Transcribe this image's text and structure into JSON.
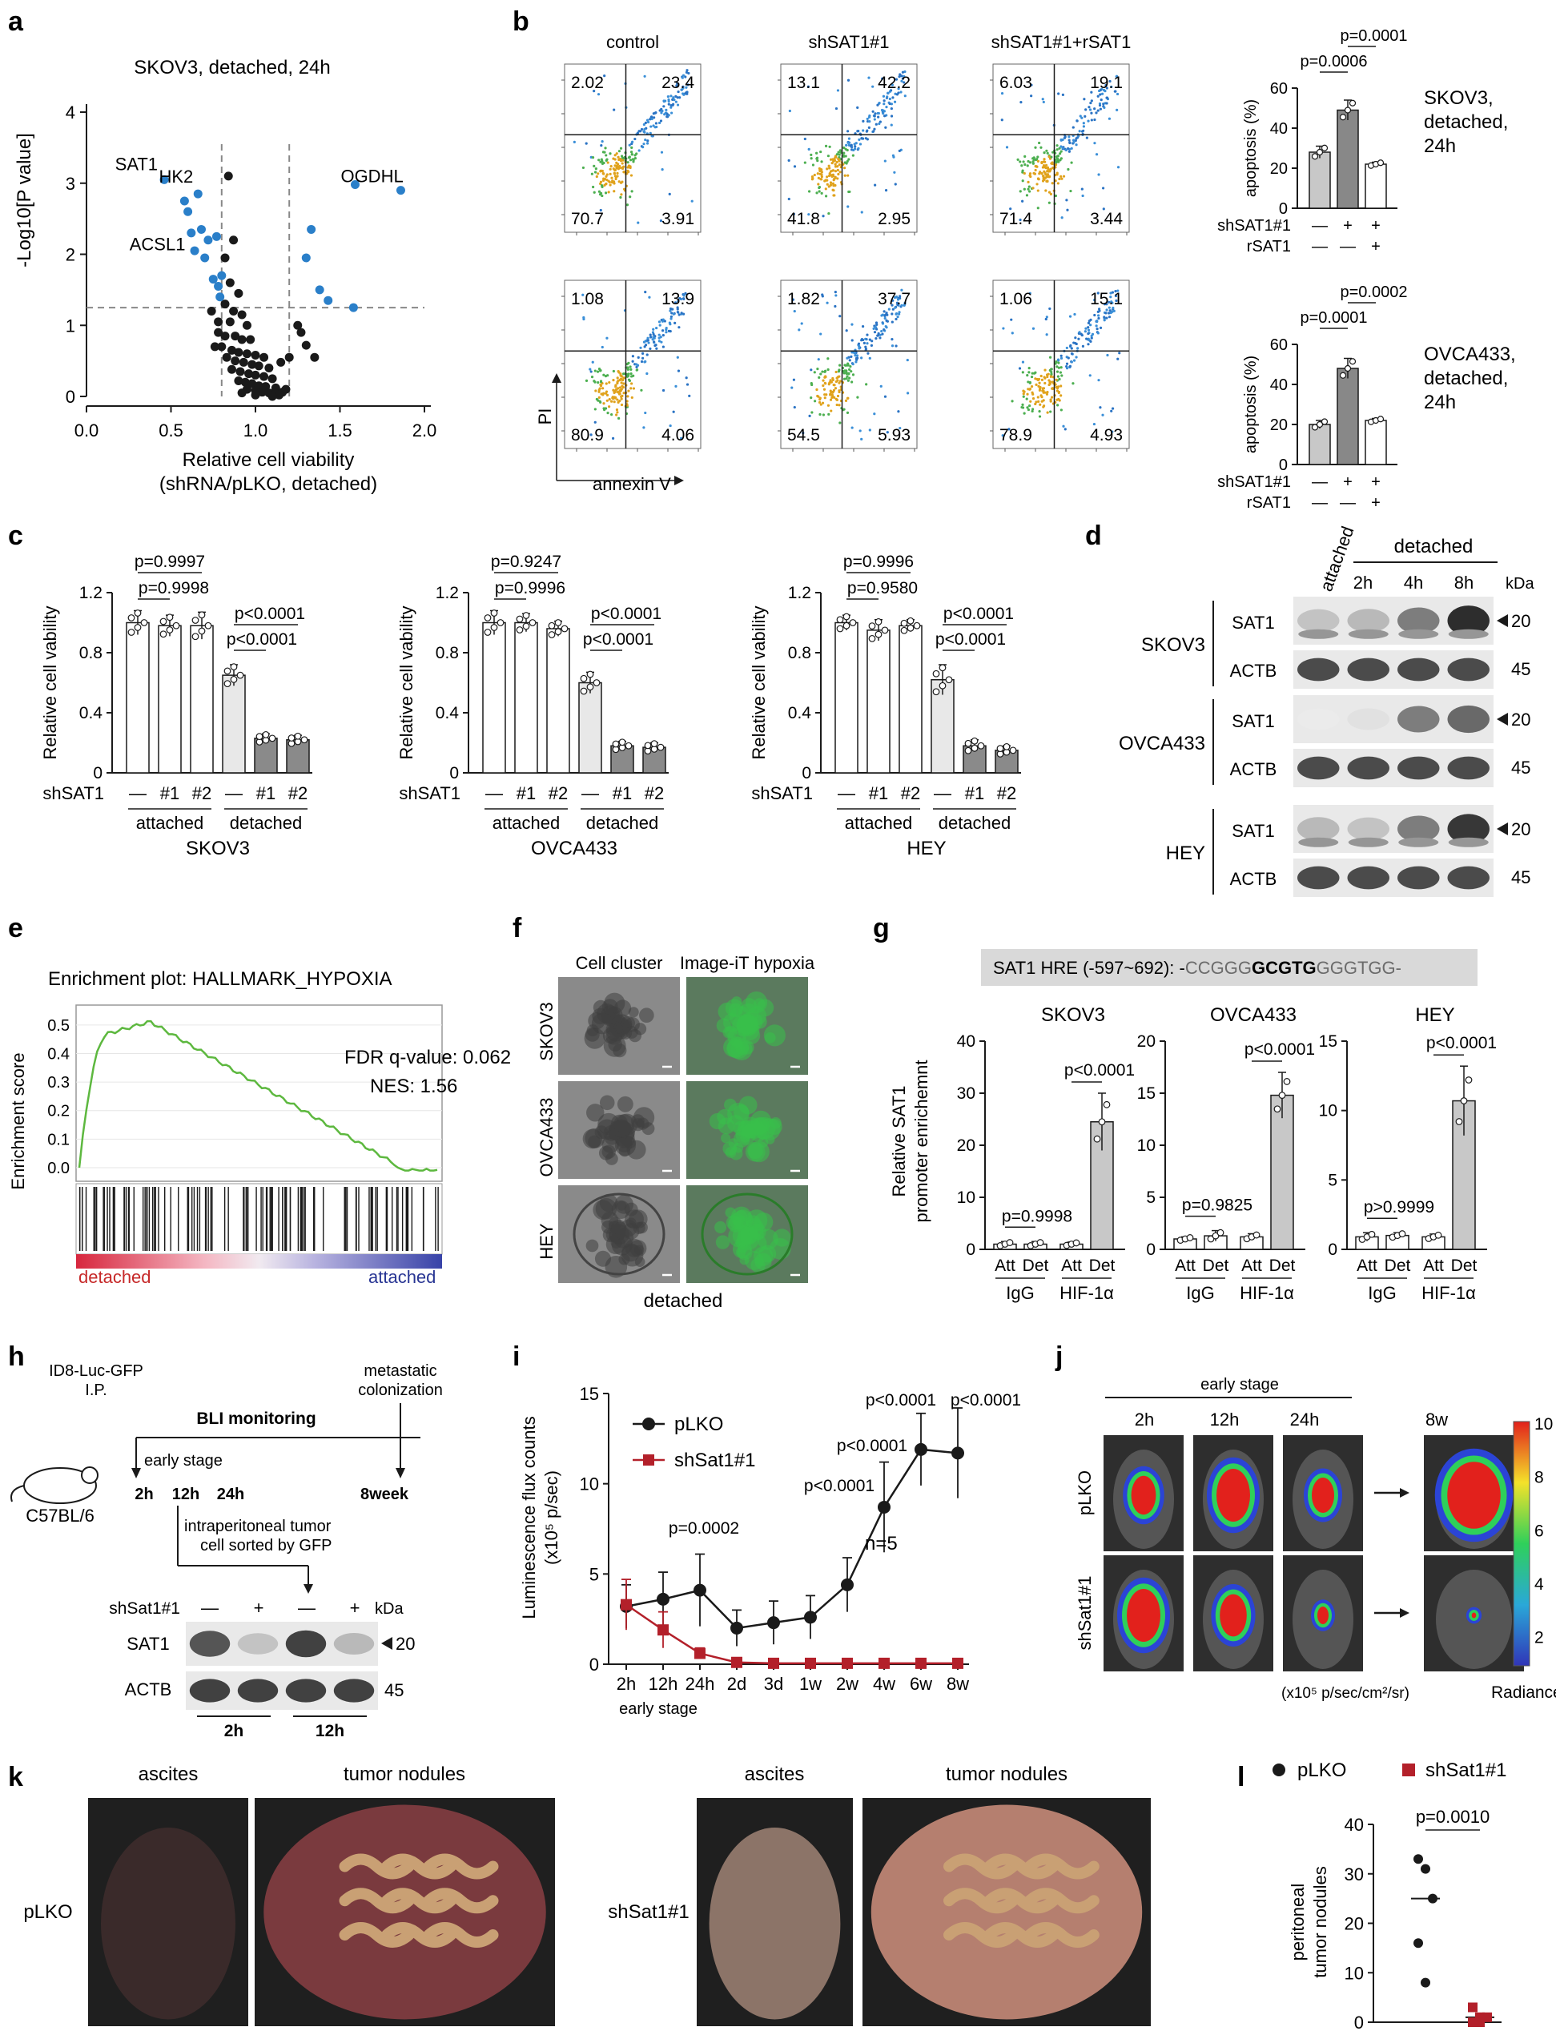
{
  "colors": {
    "black": "#1a1a1a",
    "blue_point": "#2a7fc9",
    "bar_light": "#e6e6e6",
    "bar_dark": "#888888",
    "bar_mid": "#c8c8c8",
    "gsea_line": "#5db83f",
    "shsat1_red": "#b3202a",
    "gfp_green": "#38c04a"
  },
  "panel_a": {
    "letter": "a",
    "title": "SKOV3, detached, 24h",
    "ylabel": "-Log10[P value]",
    "xlabel_line1": "Relative cell viability",
    "xlabel_line2": "(shRNA/pLKO, detached)",
    "point_labels": [
      "SAT1",
      "HK2",
      "ACSL1",
      "OGDHL"
    ],
    "chart_data": {
      "type": "scatter",
      "xlim": [
        0,
        2
      ],
      "ylim": [
        0,
        4
      ],
      "xticks": [
        "0.0",
        "0.5",
        "1.0",
        "1.5",
        "2.0"
      ],
      "yticks": [
        "0",
        "1",
        "2",
        "3",
        "4"
      ],
      "thresholds": {
        "x": [
          0.8,
          1.2
        ],
        "y": 1.25
      },
      "labeled_points": [
        {
          "label": "SAT1",
          "x": 0.46,
          "y": 3.05
        },
        {
          "label": "HK2",
          "x": 0.66,
          "y": 2.85
        },
        {
          "label": "ACSL1",
          "x": 0.68,
          "y": 2.35
        },
        {
          "label": "OGDHL",
          "x": 1.86,
          "y": 2.9
        }
      ],
      "significant_points": [
        [
          0.46,
          3.05
        ],
        [
          0.58,
          2.75
        ],
        [
          0.6,
          2.6
        ],
        [
          0.66,
          2.85
        ],
        [
          0.62,
          2.3
        ],
        [
          0.68,
          2.35
        ],
        [
          0.64,
          2.05
        ],
        [
          0.72,
          2.2
        ],
        [
          0.77,
          2.25
        ],
        [
          0.7,
          1.95
        ],
        [
          0.75,
          1.65
        ],
        [
          0.78,
          1.55
        ],
        [
          0.8,
          1.7
        ],
        [
          0.79,
          1.4
        ],
        [
          1.33,
          2.35
        ],
        [
          1.3,
          1.95
        ],
        [
          1.38,
          1.5
        ],
        [
          1.43,
          1.35
        ],
        [
          1.58,
          1.25
        ],
        [
          1.59,
          2.98
        ],
        [
          1.86,
          2.9
        ]
      ],
      "other_points": [
        [
          0.84,
          3.1
        ],
        [
          0.87,
          2.2
        ],
        [
          0.82,
          1.95
        ],
        [
          0.85,
          1.6
        ],
        [
          0.9,
          1.45
        ],
        [
          0.82,
          1.3
        ],
        [
          0.87,
          1.2
        ],
        [
          0.92,
          1.15
        ],
        [
          0.78,
          1.05
        ],
        [
          0.85,
          1.05
        ],
        [
          0.95,
          1.0
        ],
        [
          1.25,
          1.0
        ],
        [
          1.27,
          0.9
        ],
        [
          1.3,
          0.72
        ],
        [
          1.35,
          0.55
        ],
        [
          0.78,
          0.9
        ],
        [
          0.82,
          0.85
        ],
        [
          0.88,
          0.85
        ],
        [
          0.92,
          0.8
        ],
        [
          0.97,
          0.8
        ],
        [
          0.76,
          0.7
        ],
        [
          0.8,
          0.7
        ],
        [
          0.86,
          0.65
        ],
        [
          0.9,
          0.62
        ],
        [
          0.95,
          0.6
        ],
        [
          1.0,
          0.58
        ],
        [
          1.05,
          0.55
        ],
        [
          0.83,
          0.55
        ],
        [
          0.88,
          0.5
        ],
        [
          0.93,
          0.48
        ],
        [
          0.98,
          0.45
        ],
        [
          1.02,
          0.43
        ],
        [
          1.08,
          0.4
        ],
        [
          0.86,
          0.38
        ],
        [
          0.91,
          0.35
        ],
        [
          0.96,
          0.32
        ],
        [
          1.0,
          0.3
        ],
        [
          1.05,
          0.28
        ],
        [
          1.1,
          0.25
        ],
        [
          0.9,
          0.22
        ],
        [
          0.94,
          0.2
        ],
        [
          0.98,
          0.18
        ],
        [
          1.02,
          0.15
        ],
        [
          1.06,
          0.14
        ],
        [
          1.12,
          0.12
        ],
        [
          0.95,
          0.1
        ],
        [
          1.0,
          0.08
        ],
        [
          1.04,
          0.06
        ],
        [
          1.08,
          0.05
        ],
        [
          1.12,
          0.04
        ],
        [
          1.16,
          0.06
        ],
        [
          1.18,
          0.1
        ],
        [
          1.14,
          0.02
        ],
        [
          1.1,
          0.0
        ],
        [
          1.0,
          0.02
        ],
        [
          0.92,
          0.05
        ],
        [
          1.2,
          0.55
        ],
        [
          1.15,
          0.48
        ],
        [
          0.74,
          1.2
        ]
      ]
    }
  },
  "panel_b": {
    "letter": "b",
    "col_labels": [
      "control",
      "shSAT1#1",
      "shSAT1#1+rSAT1"
    ],
    "y_axis_label": "PI",
    "x_axis_label": "annexin V",
    "quadrants": [
      [
        [
          "2.02",
          "23.4",
          "70.7",
          "3.91"
        ],
        [
          "13.1",
          "42.2",
          "41.8",
          "2.95"
        ],
        [
          "6.03",
          "19.1",
          "71.4",
          "3.44"
        ]
      ],
      [
        [
          "1.08",
          "13.9",
          "80.9",
          "4.06"
        ],
        [
          "1.82",
          "37.7",
          "54.5",
          "5.93"
        ],
        [
          "1.06",
          "15.1",
          "78.9",
          "4.93"
        ]
      ]
    ],
    "bar_ylabel": "apoptosis (%)",
    "bar_row_labels": [
      "shSAT1#1",
      "rSAT1"
    ],
    "bar_row_signs": [
      [
        "—",
        "+",
        "+"
      ],
      [
        "—",
        "—",
        "+"
      ]
    ],
    "bar_charts": [
      {
        "cell_label": [
          "SKOV3,",
          "detached,",
          "24h"
        ],
        "pvals": [
          "p=0.0006",
          "p=0.0001"
        ]
      },
      {
        "cell_label": [
          "OVCA433,",
          "detached,",
          "24h"
        ],
        "pvals": [
          "p=0.0001",
          "p=0.0002"
        ]
      }
    ],
    "chart_data": [
      {
        "type": "bar",
        "title": "SKOV3, detached, 24h",
        "categories": [
          "control",
          "shSAT1#1",
          "shSAT1#1+rSAT1"
        ],
        "values": [
          28,
          49,
          22
        ],
        "errors": [
          3,
          5,
          1
        ],
        "ylim": [
          0,
          60
        ],
        "yticks": [
          "0",
          "20",
          "40",
          "60"
        ]
      },
      {
        "type": "bar",
        "title": "OVCA433, detached, 24h",
        "categories": [
          "control",
          "shSAT1#1",
          "shSAT1#1+rSAT1"
        ],
        "values": [
          20,
          48,
          22
        ],
        "errors": [
          2,
          5,
          1
        ],
        "ylim": [
          0,
          60
        ],
        "yticks": [
          "0",
          "20",
          "40",
          "60"
        ]
      }
    ]
  },
  "panel_c": {
    "letter": "c",
    "ylabel": "Relative cell vability",
    "row_label": "shSAT1",
    "x_labels": [
      "—",
      "#1",
      "#2",
      "—",
      "#1",
      "#2"
    ],
    "groups": [
      "attached",
      "detached"
    ],
    "charts": [
      {
        "cell": "SKOV3",
        "pvals": [
          "p=0.9997",
          "p=0.9998",
          "p<0.0001",
          "p<0.0001"
        ]
      },
      {
        "cell": "OVCA433",
        "pvals": [
          "p=0.9247",
          "p=0.9996",
          "p<0.0001",
          "p<0.0001"
        ]
      },
      {
        "cell": "HEY",
        "pvals": [
          "p=0.9996",
          "p=0.9580",
          "p<0.0001",
          "p<0.0001"
        ]
      }
    ],
    "chart_data": [
      {
        "type": "bar",
        "title": "SKOV3",
        "categories": [
          "attached —",
          "attached #1",
          "attached #2",
          "detached —",
          "detached #1",
          "detached #2"
        ],
        "values": [
          1.0,
          0.98,
          0.98,
          0.65,
          0.23,
          0.22
        ],
        "errors": [
          0.08,
          0.07,
          0.09,
          0.07,
          0.03,
          0.03
        ],
        "ylim": [
          0,
          1.2
        ],
        "yticks": [
          "0",
          "0.4",
          "0.8",
          "1.2"
        ]
      },
      {
        "type": "bar",
        "title": "OVCA433",
        "categories": [
          "attached —",
          "attached #1",
          "attached #2",
          "detached —",
          "detached #1",
          "detached #2"
        ],
        "values": [
          1.0,
          1.0,
          0.96,
          0.6,
          0.18,
          0.17
        ],
        "errors": [
          0.08,
          0.06,
          0.05,
          0.07,
          0.03,
          0.03
        ],
        "ylim": [
          0,
          1.2
        ],
        "yticks": [
          "0",
          "0.4",
          "0.8",
          "1.2"
        ]
      },
      {
        "type": "bar",
        "title": "HEY",
        "categories": [
          "attached —",
          "attached #1",
          "attached #2",
          "detached —",
          "detached #1",
          "detached #2"
        ],
        "values": [
          1.0,
          0.95,
          0.98,
          0.62,
          0.18,
          0.15
        ],
        "errors": [
          0.05,
          0.07,
          0.04,
          0.1,
          0.04,
          0.03
        ],
        "ylim": [
          0,
          1.2
        ],
        "yticks": [
          "0",
          "0.4",
          "0.8",
          "1.2"
        ]
      }
    ]
  },
  "panel_d": {
    "letter": "d",
    "lane_first": "attached",
    "detached_label": "detached",
    "time_labels": [
      "2h",
      "4h",
      "8h"
    ],
    "kda_label": "kDa",
    "cells": [
      "SKOV3",
      "OVCA433",
      "HEY"
    ],
    "band_labels": [
      "SAT1",
      "ACTB"
    ],
    "kda_values": [
      "20",
      "45"
    ]
  },
  "panel_e": {
    "letter": "e",
    "title": "Enrichment plot: HALLMARK_HYPOXIA",
    "ylabel": "Enrichment score",
    "yticks": [
      "0.5",
      "0.4",
      "0.3",
      "0.2",
      "0.1",
      "0.0"
    ],
    "fdr": "FDR q-value: 0.062",
    "nes": "NES: 1.56",
    "left_label": "detached",
    "right_label": "attached",
    "chart_data": {
      "type": "line",
      "ylim": [
        0,
        0.55
      ],
      "peak_es": 0.52,
      "fdr_q": 0.062,
      "nes": 1.56
    }
  },
  "panel_f": {
    "letter": "f",
    "col_labels": [
      "Cell cluster",
      "Image-iT hypoxia"
    ],
    "row_labels": [
      "SKOV3",
      "OVCA433",
      "HEY"
    ],
    "bottom_label": "detached"
  },
  "panel_g": {
    "letter": "g",
    "hre_prefix": "SAT1 HRE (-597~692): -",
    "hre_left": "CCGGG",
    "hre_core": "GCGTG",
    "hre_right": "GGGTGG-",
    "ylabel_line1": "Relative SAT1",
    "ylabel_line2": "promoter enrichemnt",
    "x_labels": [
      "Att",
      "Det",
      "Att",
      "Det"
    ],
    "groups": [
      "IgG",
      "HIF-1α"
    ],
    "charts": [
      {
        "cell": "SKOV3",
        "pvals": [
          "p=0.9998",
          "p<0.0001"
        ]
      },
      {
        "cell": "OVCA433",
        "pvals": [
          "p=0.9825",
          "p<0.0001"
        ]
      },
      {
        "cell": "HEY",
        "pvals": [
          "p>0.9999",
          "p<0.0001"
        ]
      }
    ],
    "chart_data": [
      {
        "type": "bar",
        "title": "SKOV3",
        "categories": [
          "IgG Att",
          "IgG Det",
          "HIF-1α Att",
          "HIF-1α Det"
        ],
        "values": [
          1.0,
          1.0,
          1.0,
          24.5
        ],
        "errors": [
          0.5,
          0.5,
          0.4,
          5.5
        ],
        "ylim": [
          0,
          40
        ],
        "yticks": [
          "0",
          "10",
          "20",
          "30",
          "40"
        ]
      },
      {
        "type": "bar",
        "title": "OVCA433",
        "categories": [
          "IgG Att",
          "IgG Det",
          "HIF-1α Att",
          "HIF-1α Det"
        ],
        "values": [
          1.0,
          1.3,
          1.2,
          14.8
        ],
        "errors": [
          0.2,
          0.5,
          0.3,
          2.2
        ],
        "ylim": [
          0,
          20
        ],
        "yticks": [
          "0",
          "5",
          "10",
          "15",
          "20"
        ]
      },
      {
        "type": "bar",
        "title": "HEY",
        "categories": [
          "IgG Att",
          "IgG Det",
          "HIF-1α Att",
          "HIF-1α Det"
        ],
        "values": [
          0.9,
          1.0,
          0.9,
          10.7
        ],
        "errors": [
          0.3,
          0.2,
          0.2,
          2.5
        ],
        "ylim": [
          0,
          15
        ],
        "yticks": [
          "0",
          "5",
          "10",
          "15"
        ]
      }
    ]
  },
  "panel_h": {
    "letter": "h",
    "injection_line1": "ID8-Luc-GFP",
    "injection_line2": "I.P.",
    "bli": "BLI monitoring",
    "metastatic_line1": "metastatic",
    "metastatic_line2": "colonization",
    "early_stage": "early stage",
    "mouse": "C57BL/6",
    "timepoints": [
      "2h",
      "12h",
      "24h",
      "8week"
    ],
    "sorted_line1": "intraperitoneal tumor",
    "sorted_line2": "cell sorted by GFP",
    "row_label": "shSat1#1",
    "signs": [
      "—",
      "+",
      "—",
      "+"
    ],
    "kda_label": "kDa",
    "band_labels": [
      "SAT1",
      "ACTB"
    ],
    "kda_values": [
      "20",
      "45"
    ],
    "lane_groups": [
      "2h",
      "12h"
    ]
  },
  "panel_i": {
    "letter": "i",
    "ylabel_line1": "Luminescence flux counts",
    "ylabel_line2": "(x10⁵ p/sec)",
    "legend": [
      "pLKO",
      "shSat1#1"
    ],
    "n_label": "n=5",
    "early_stage": "early stage",
    "pvals": [
      "p=0.0002",
      "p<0.0001",
      "p<0.0001",
      "p<0.0001",
      "p<0.0001"
    ],
    "chart_data": {
      "type": "line",
      "categories": [
        "2h",
        "12h",
        "24h",
        "2d",
        "3d",
        "1w",
        "2w",
        "4w",
        "6w",
        "8w"
      ],
      "ylim": [
        0,
        15
      ],
      "yticks": [
        "0",
        "5",
        "10",
        "15"
      ],
      "series": [
        {
          "name": "pLKO",
          "values": [
            3.2,
            3.6,
            4.1,
            2.0,
            2.3,
            2.6,
            4.4,
            8.7,
            11.9,
            11.7
          ],
          "errors": [
            1.2,
            1.5,
            2.0,
            1.0,
            1.2,
            1.2,
            1.5,
            2.5,
            2.0,
            2.5
          ]
        },
        {
          "name": "shSat1#1",
          "values": [
            3.3,
            1.9,
            0.6,
            0.1,
            0.05,
            0.05,
            0.05,
            0.05,
            0.05,
            0.05
          ],
          "errors": [
            1.4,
            1.0,
            0.3,
            0.1,
            0.05,
            0.05,
            0.05,
            0.05,
            0.05,
            0.05
          ]
        }
      ]
    }
  },
  "panel_j": {
    "letter": "j",
    "early_stage": "early stage",
    "col_labels": [
      "2h",
      "12h",
      "24h",
      "8w"
    ],
    "row_labels": [
      "pLKO",
      "shSat1#1"
    ],
    "colorbar_ticks": [
      "10",
      "8",
      "6",
      "4",
      "2"
    ],
    "units": "(x10⁵ p/sec/cm²/sr)",
    "radiance": "Radiance"
  },
  "panel_k": {
    "letter": "k",
    "col_labels": [
      "ascites",
      "tumor nodules",
      "ascites",
      "tumor nodules"
    ],
    "row_labels": [
      "pLKO",
      "shSat1#1"
    ]
  },
  "panel_l": {
    "letter": "l",
    "legend": [
      "pLKO",
      "shSat1#1"
    ],
    "ylabel_line1": "peritoneal",
    "ylabel_line2": "tumor nodules",
    "pval": "p=0.0010",
    "chart_data": {
      "type": "scatter",
      "ylim": [
        0,
        40
      ],
      "yticks": [
        "0",
        "10",
        "20",
        "30",
        "40"
      ],
      "series": [
        {
          "name": "pLKO",
          "values": [
            33,
            31,
            25,
            16,
            8
          ],
          "median": 25
        },
        {
          "name": "shSat1#1",
          "values": [
            3,
            1,
            1,
            0,
            0
          ],
          "median": 1
        }
      ]
    }
  }
}
